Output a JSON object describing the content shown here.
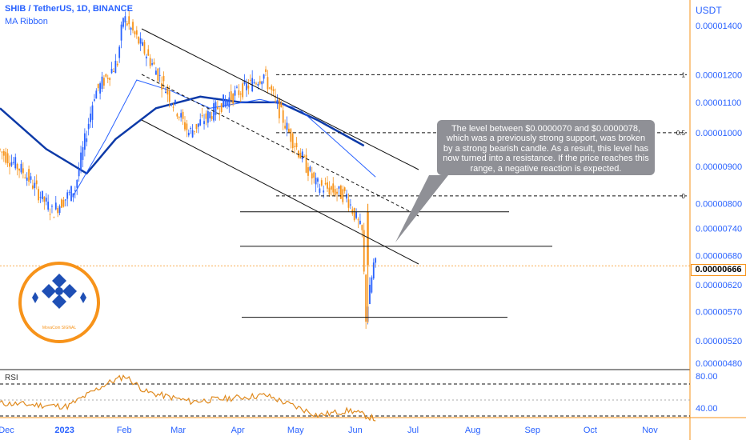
{
  "header": {
    "title": "SHIB / TetherUS, 1D, BINANCE",
    "indicator": "MA Ribbon",
    "rsi_label": "RSI"
  },
  "price_axis": {
    "currency": "USDT",
    "ticks": [
      "0.00001400",
      "0.00001200",
      "0.00001100",
      "0.00001000",
      "0.00000900",
      "0.00000800",
      "0.00000740",
      "0.00000680",
      "0.00000620",
      "0.00000570",
      "0.00000520",
      "0.00000480"
    ],
    "current_price": "0.00000666"
  },
  "rsi_axis": {
    "ticks": [
      "80.00",
      "40.00"
    ]
  },
  "time_axis": {
    "labels": [
      "Dec",
      "2023",
      "Feb",
      "Mar",
      "Apr",
      "May",
      "Jun",
      "Jul",
      "Aug",
      "Sep",
      "Oct",
      "Nov"
    ]
  },
  "fib_labels": [
    "1",
    "0.5",
    "0"
  ],
  "annotation": "The level between $0.0000070 and $0.0000078, which was a previously strong support, was broken by a strong bearish candle. As a result, this level has now turned into a resistance. If the price reaches this range, a negative reaction is expected.",
  "logo": {
    "text": "MovaCoin SIGNAL"
  },
  "colors": {
    "up": "#2962ff",
    "down": "#f7931a",
    "ma_dark": "#0d3aa8",
    "ma_light": "#2962ff",
    "rsi": "#e08a1e",
    "axis": "#f7931a"
  },
  "chart_data": {
    "type": "candlestick",
    "symbol": "SHIB/USDT",
    "timeframe": "1D",
    "ylim": [
      4.8e-06,
      1.45e-05
    ],
    "price_points": [
      {
        "x": "2022-12-01",
        "y": 9.5e-06
      },
      {
        "x": "2022-12-15",
        "y": 8.8e-06
      },
      {
        "x": "2022-12-29",
        "y": 7.8e-06
      },
      {
        "x": "2023-01-10",
        "y": 8.4e-06
      },
      {
        "x": "2023-01-20",
        "y": 1.13e-05
      },
      {
        "x": "2023-02-01",
        "y": 1.25e-05
      },
      {
        "x": "2023-02-04",
        "y": 1.44e-05
      },
      {
        "x": "2023-02-20",
        "y": 1.23e-05
      },
      {
        "x": "2023-03-10",
        "y": 1e-05
      },
      {
        "x": "2023-03-28",
        "y": 1.1e-05
      },
      {
        "x": "2023-04-18",
        "y": 1.2e-05
      },
      {
        "x": "2023-05-01",
        "y": 1e-05
      },
      {
        "x": "2023-05-15",
        "y": 8.5e-06
      },
      {
        "x": "2023-05-31",
        "y": 8.2e-06
      },
      {
        "x": "2023-06-08",
        "y": 7.3e-06
      },
      {
        "x": "2023-06-10",
        "y": 5.6e-06
      },
      {
        "x": "2023-06-14",
        "y": 6.6e-06
      }
    ],
    "horizontal_levels": [
      7.8e-06,
      7e-06,
      5.6e-06
    ],
    "fib_levels": [
      {
        "label": "1",
        "value": 1.2e-05
      },
      {
        "label": "0.5",
        "value": 1e-05
      },
      {
        "label": "0",
        "value": 8.2e-06
      }
    ],
    "rsi": {
      "levels": [
        70,
        50,
        30
      ],
      "points": [
        {
          "x": "2022-12-01",
          "y": 46
        },
        {
          "x": "2023-01-05",
          "y": 42
        },
        {
          "x": "2023-01-25",
          "y": 70
        },
        {
          "x": "2023-02-04",
          "y": 80
        },
        {
          "x": "2023-02-15",
          "y": 60
        },
        {
          "x": "2023-03-10",
          "y": 48
        },
        {
          "x": "2023-04-18",
          "y": 56
        },
        {
          "x": "2023-05-15",
          "y": 31
        },
        {
          "x": "2023-06-01",
          "y": 37
        },
        {
          "x": "2023-06-14",
          "y": 26
        }
      ]
    }
  }
}
